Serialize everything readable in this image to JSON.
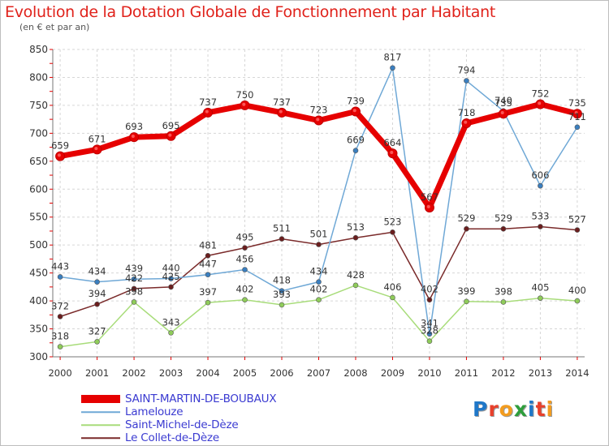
{
  "header": {
    "title": "Evolution de la Dotation Globale de Fonctionnement par Habitant",
    "subtitle": "(en € et par an)"
  },
  "logo": {
    "text": "Proxiti",
    "letters": [
      {
        "char": "P",
        "color": "#1f77c8"
      },
      {
        "char": "r",
        "color": "#e8402b"
      },
      {
        "char": "o",
        "color": "#f39c1f"
      },
      {
        "char": "x",
        "color": "#2e9e3c"
      },
      {
        "char": "i",
        "color": "#1f77c8"
      },
      {
        "char": "t",
        "color": "#e8402b"
      },
      {
        "char": "i",
        "color": "#f39c1f"
      }
    ]
  },
  "chart_data": {
    "type": "line",
    "title": "Evolution de la Dotation Globale de Fonctionnement par Habitant",
    "subtitle": "(en € et par an)",
    "x": [
      2000,
      2001,
      2002,
      2003,
      2004,
      2005,
      2006,
      2007,
      2008,
      2009,
      2010,
      2011,
      2012,
      2013,
      2014
    ],
    "ylim": [
      300,
      850
    ],
    "yticks": [
      300,
      350,
      400,
      450,
      500,
      550,
      600,
      650,
      700,
      750,
      800,
      850
    ],
    "grid": true,
    "legend_position": "bottom-left",
    "series": [
      {
        "name": "SAINT-MARTIN-DE-BOUBAUX",
        "color": "#e60000",
        "values": [
          659,
          671,
          693,
          695,
          737,
          750,
          737,
          723,
          739,
          664,
          567,
          718,
          735,
          752,
          735
        ]
      },
      {
        "name": "Lamelouze",
        "color": "#6fa8d6",
        "values": [
          443,
          434,
          439,
          440,
          447,
          456,
          418,
          434,
          669,
          817,
          341,
          794,
          740,
          606,
          711
        ]
      },
      {
        "name": "Saint-Michel-de-Dèze",
        "color": "#a8dc7a",
        "values": [
          318,
          327,
          398,
          343,
          397,
          402,
          393,
          402,
          428,
          406,
          328,
          399,
          398,
          405,
          400
        ]
      },
      {
        "name": "Le Collet-de-Dèze",
        "color": "#7a2a2a",
        "values": [
          372,
          394,
          422,
          425,
          481,
          495,
          511,
          501,
          513,
          523,
          402,
          529,
          529,
          533,
          527
        ]
      }
    ]
  }
}
